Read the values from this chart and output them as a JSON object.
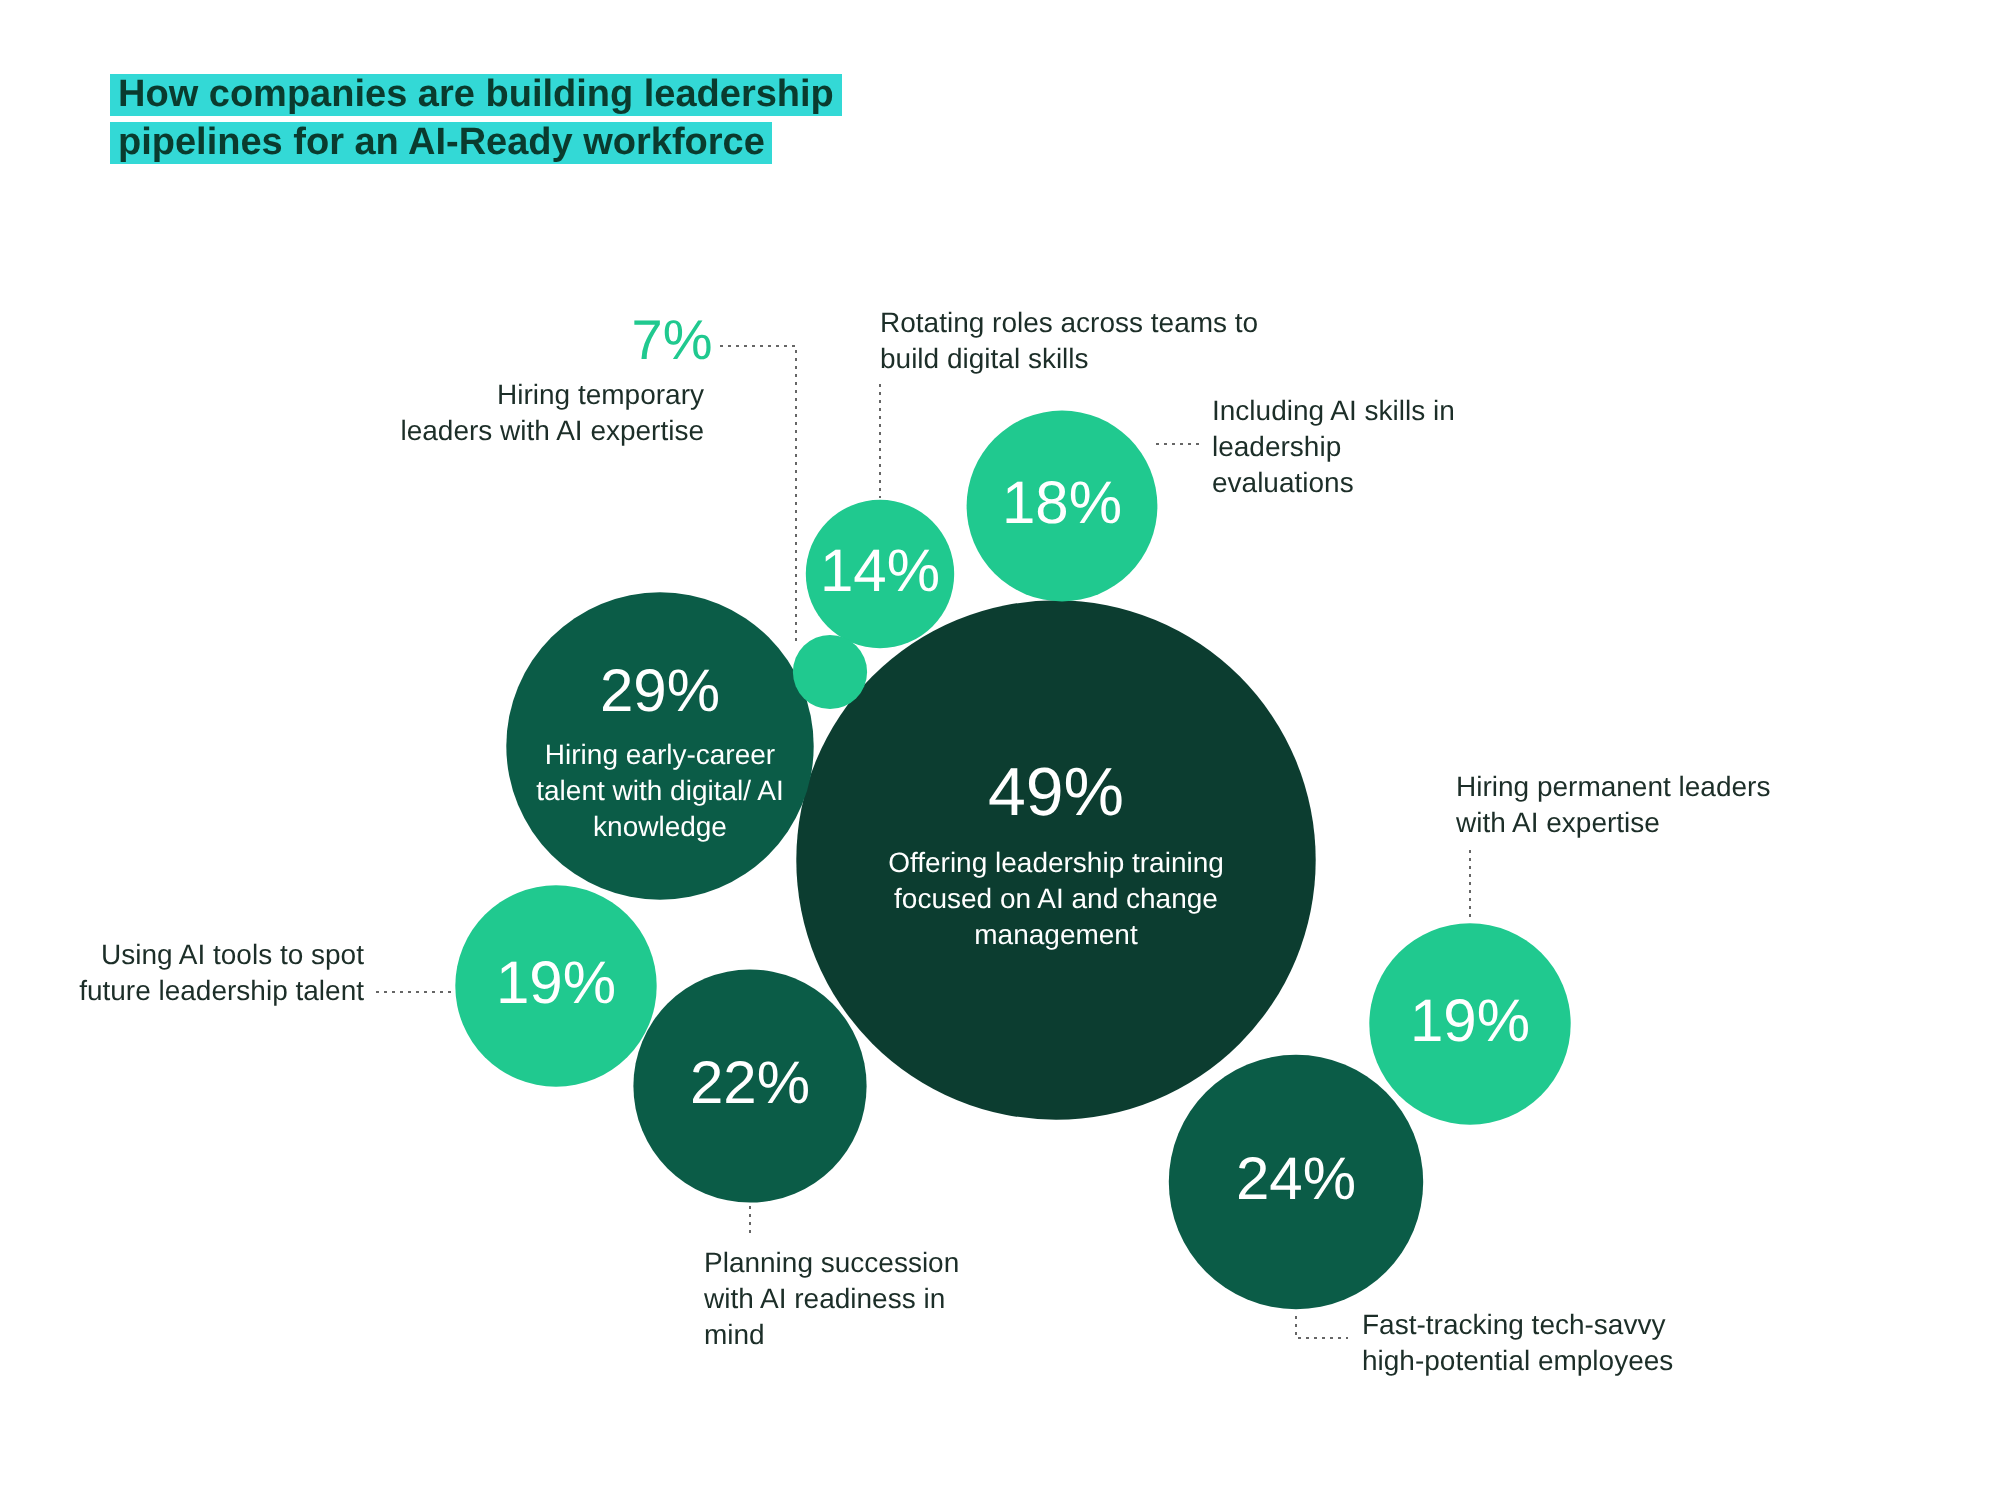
{
  "chart_data": {
    "type": "other",
    "title": "How companies are building leadership pipelines for an AI-Ready workforce",
    "categories": [
      "Offering leadership training focused on AI and change management",
      "Hiring early-career talent with digital/ AI knowledge",
      "Rotating roles across teams to build digital skills",
      "Including AI skills in leadership evaluations",
      "Hiring temporary leaders with AI expertise",
      "Using AI tools to spot future leadership talent",
      "Planning succession with AI readiness in mind",
      "Fast-tracking tech-savvy high-potential employees",
      "Hiring permanent leaders with AI expertise"
    ],
    "values": [
      49,
      29,
      14,
      18,
      7,
      19,
      22,
      24,
      19
    ],
    "value_labels": [
      "49%",
      "29%",
      "14%",
      "18%",
      "7%",
      "19%",
      "22%",
      "24%",
      "19%"
    ],
    "colors": [
      "#0c3d30",
      "#0b5c47",
      "#20c98f",
      "#20c98f",
      "#20c98f",
      "#20c98f",
      "#0b5c47",
      "#0b5c47",
      "#20c98f"
    ]
  }
}
